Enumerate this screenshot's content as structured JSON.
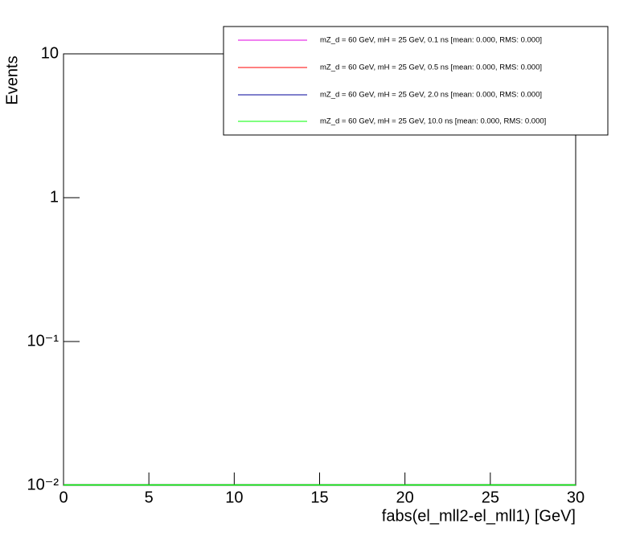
{
  "chart_data": {
    "type": "histogram",
    "x_label": "fabs(el_mll2-el_mll1) [GeV]",
    "y_label": "Events",
    "log_y": true,
    "bins": [
      0,
      30
    ],
    "xlim": [
      0,
      30
    ],
    "xticks": [
      0,
      5,
      10,
      15,
      20,
      25,
      30
    ],
    "ylim": [
      0.01,
      10
    ],
    "yticks": [
      {
        "value": 0.01,
        "label": "10⁻²"
      },
      {
        "value": 0.1,
        "label": "10⁻¹"
      },
      1,
      10
    ],
    "series": [
      {
        "name": "mZ_d = 60 GeV, mH = 25 GeV, 0.1 ns [mean: 0.000, RMS: 0.000]",
        "color": "#e000e0",
        "values": [
          0
        ]
      },
      {
        "name": "mZ_d = 60 GeV, mH = 25 GeV, 0.5 ns [mean: 0.000, RMS: 0.000]",
        "color": "#ff0000",
        "values": [
          0
        ]
      },
      {
        "name": "mZ_d = 60 GeV, mH = 25 GeV, 2.0 ns [mean: 0.000, RMS: 0.000]",
        "color": "#000099",
        "values": [
          0
        ]
      },
      {
        "name": "mZ_d = 60 GeV, mH = 25 GeV, 10.0 ns [mean: 0.000, RMS: 0.000]",
        "color": "#00ff00",
        "values": [
          0
        ]
      }
    ]
  }
}
